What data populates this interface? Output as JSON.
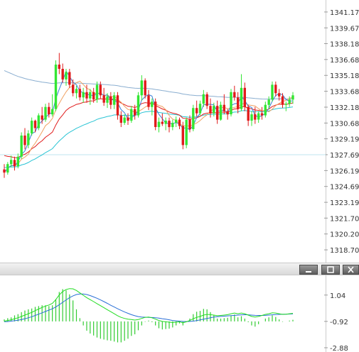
{
  "colors": {
    "up": "#33e633",
    "down": "#e01b1b",
    "ma_red": "#e01b1b",
    "ma_orange": "#f0a060",
    "ma_blue": "#3a7fd8",
    "ma_cyan": "#29c4d4",
    "ma_slate": "#8aaed0",
    "level_line": "#bfe6ef",
    "macd_fast": "#22dd22",
    "macd_signal": "#2a6fd6",
    "histogram": "#33cc33"
  },
  "window_buttons": {
    "minimize": "minimize-icon",
    "maximize": "maximize-icon",
    "close": "close-icon"
  },
  "chart_data": [
    {
      "type": "candlestick",
      "title": "",
      "ylim": [
        1317.9,
        1341.9
      ],
      "y_ticks": [
        "1341.17",
        "1339.67",
        "1338.18",
        "1336.68",
        "1335.18",
        "1333.68",
        "1332.18",
        "1330.68",
        "1329.19",
        "1327.69",
        "1326.19",
        "1324.69",
        "1323.19",
        "1321.70",
        "1320.20",
        "1318.70"
      ],
      "horizontal_level": 1327.69,
      "ohlc": [
        [
          1326.3,
          1326.8,
          1325.5,
          1326.0
        ],
        [
          1326.0,
          1327.0,
          1325.8,
          1326.8
        ],
        [
          1326.8,
          1327.6,
          1326.5,
          1327.2
        ],
        [
          1327.2,
          1327.5,
          1326.2,
          1326.6
        ],
        [
          1326.6,
          1327.8,
          1326.4,
          1327.5
        ],
        [
          1327.5,
          1329.8,
          1327.3,
          1329.5
        ],
        [
          1329.5,
          1330.2,
          1328.2,
          1328.6
        ],
        [
          1328.6,
          1330.0,
          1328.3,
          1329.7
        ],
        [
          1329.7,
          1331.2,
          1329.5,
          1330.9
        ],
        [
          1330.9,
          1331.0,
          1329.8,
          1330.2
        ],
        [
          1330.2,
          1331.6,
          1330.0,
          1331.4
        ],
        [
          1331.4,
          1332.2,
          1330.6,
          1331.0
        ],
        [
          1331.0,
          1332.5,
          1330.8,
          1332.2
        ],
        [
          1332.2,
          1332.6,
          1331.2,
          1331.5
        ],
        [
          1331.5,
          1333.4,
          1331.3,
          1332.0
        ],
        [
          1332.0,
          1336.6,
          1331.8,
          1336.2
        ],
        [
          1336.2,
          1337.3,
          1335.3,
          1335.8
        ],
        [
          1335.8,
          1336.3,
          1334.5,
          1334.8
        ],
        [
          1334.8,
          1335.8,
          1334.2,
          1335.5
        ],
        [
          1335.5,
          1335.8,
          1334.0,
          1334.3
        ],
        [
          1334.3,
          1334.8,
          1333.2,
          1333.5
        ],
        [
          1333.5,
          1334.2,
          1333.0,
          1333.9
        ],
        [
          1333.9,
          1334.3,
          1332.8,
          1333.1
        ],
        [
          1333.1,
          1334.0,
          1332.6,
          1333.6
        ],
        [
          1333.6,
          1334.3,
          1332.6,
          1333.0
        ],
        [
          1333.0,
          1333.9,
          1332.4,
          1333.6
        ],
        [
          1333.6,
          1334.0,
          1332.6,
          1332.9
        ],
        [
          1332.9,
          1334.6,
          1332.6,
          1334.3
        ],
        [
          1334.3,
          1334.6,
          1333.0,
          1333.3
        ],
        [
          1333.3,
          1334.0,
          1332.3,
          1332.6
        ],
        [
          1332.6,
          1333.5,
          1332.1,
          1333.2
        ],
        [
          1333.2,
          1333.6,
          1332.0,
          1332.4
        ],
        [
          1332.4,
          1333.6,
          1332.0,
          1333.3
        ],
        [
          1333.3,
          1333.6,
          1331.0,
          1331.4
        ],
        [
          1331.4,
          1331.8,
          1330.3,
          1330.7
        ],
        [
          1330.7,
          1331.5,
          1330.5,
          1331.2
        ],
        [
          1331.2,
          1331.6,
          1330.5,
          1330.9
        ],
        [
          1330.9,
          1332.3,
          1330.7,
          1332.0
        ],
        [
          1332.0,
          1332.4,
          1331.0,
          1331.4
        ],
        [
          1331.4,
          1333.6,
          1331.2,
          1333.3
        ],
        [
          1333.3,
          1335.2,
          1332.8,
          1334.7
        ],
        [
          1334.7,
          1334.9,
          1333.0,
          1333.3
        ],
        [
          1333.3,
          1333.8,
          1331.9,
          1332.2
        ],
        [
          1332.2,
          1333.0,
          1331.4,
          1332.7
        ],
        [
          1332.7,
          1333.0,
          1330.0,
          1330.3
        ],
        [
          1330.3,
          1331.2,
          1329.8,
          1330.8
        ],
        [
          1330.8,
          1331.6,
          1330.4,
          1330.6
        ],
        [
          1330.6,
          1331.2,
          1330.0,
          1330.9
        ],
        [
          1330.9,
          1331.2,
          1329.8,
          1330.3
        ],
        [
          1330.3,
          1331.0,
          1330.0,
          1330.7
        ],
        [
          1330.7,
          1331.3,
          1330.3,
          1331.0
        ],
        [
          1331.0,
          1331.2,
          1330.1,
          1330.4
        ],
        [
          1330.4,
          1330.8,
          1328.2,
          1328.6
        ],
        [
          1328.6,
          1331.2,
          1328.3,
          1331.0
        ],
        [
          1331.0,
          1331.4,
          1329.8,
          1330.1
        ],
        [
          1330.1,
          1332.4,
          1329.9,
          1332.1
        ],
        [
          1332.1,
          1332.8,
          1331.3,
          1331.6
        ],
        [
          1331.6,
          1332.8,
          1331.4,
          1332.5
        ],
        [
          1332.5,
          1333.8,
          1332.2,
          1333.4
        ],
        [
          1333.4,
          1333.6,
          1332.0,
          1332.3
        ],
        [
          1332.3,
          1333.0,
          1331.2,
          1331.6
        ],
        [
          1331.6,
          1332.6,
          1331.3,
          1332.3
        ],
        [
          1332.3,
          1332.8,
          1330.6,
          1331.0
        ],
        [
          1331.0,
          1332.7,
          1330.9,
          1332.4
        ],
        [
          1332.4,
          1333.4,
          1331.5,
          1331.8
        ],
        [
          1331.8,
          1332.0,
          1331.0,
          1331.5
        ],
        [
          1331.5,
          1333.9,
          1331.3,
          1333.6
        ],
        [
          1333.6,
          1334.2,
          1332.8,
          1333.1
        ],
        [
          1333.1,
          1333.6,
          1331.6,
          1332.0
        ],
        [
          1332.0,
          1335.3,
          1331.8,
          1334.0
        ],
        [
          1334.0,
          1334.5,
          1331.8,
          1332.2
        ],
        [
          1332.2,
          1332.4,
          1330.4,
          1330.9
        ],
        [
          1330.9,
          1331.8,
          1330.4,
          1331.5
        ],
        [
          1331.5,
          1332.2,
          1330.6,
          1331.0
        ],
        [
          1331.0,
          1331.8,
          1330.7,
          1331.6
        ],
        [
          1331.6,
          1332.2,
          1331.0,
          1331.4
        ],
        [
          1331.4,
          1332.7,
          1331.2,
          1332.4
        ],
        [
          1332.4,
          1333.2,
          1332.0,
          1332.9
        ],
        [
          1332.9,
          1334.6,
          1332.7,
          1334.3
        ],
        [
          1334.3,
          1334.6,
          1333.2,
          1333.5
        ],
        [
          1333.5,
          1333.9,
          1332.8,
          1333.2
        ],
        [
          1333.2,
          1333.5,
          1332.1,
          1332.4
        ],
        [
          1332.4,
          1332.7,
          1331.8,
          1332.5
        ],
        [
          1332.5,
          1333.2,
          1332.2,
          1332.9
        ],
        [
          1332.9,
          1333.6,
          1332.5,
          1333.3
        ]
      ]
    },
    {
      "type": "macd",
      "ylim": [
        -2.88,
        2.4
      ],
      "y_ticks": [
        "1.04",
        "-0.92",
        "-2.88"
      ],
      "fast": [
        -0.9,
        -0.85,
        -0.8,
        -0.72,
        -0.65,
        -0.55,
        -0.45,
        -0.35,
        -0.25,
        -0.12,
        0.0,
        0.12,
        0.22,
        0.3,
        0.42,
        0.7,
        1.05,
        1.3,
        1.45,
        1.52,
        1.5,
        1.38,
        1.2,
        1.02,
        0.85,
        0.7,
        0.55,
        0.4,
        0.25,
        0.1,
        -0.05,
        -0.2,
        -0.35,
        -0.5,
        -0.62,
        -0.7,
        -0.75,
        -0.78,
        -0.82,
        -0.78,
        -0.7,
        -0.62,
        -0.6,
        -0.65,
        -0.75,
        -0.85,
        -0.92,
        -0.95,
        -0.98,
        -1.0,
        -0.98,
        -0.95,
        -1.02,
        -0.95,
        -0.85,
        -0.72,
        -0.62,
        -0.55,
        -0.45,
        -0.4,
        -0.42,
        -0.45,
        -0.5,
        -0.48,
        -0.45,
        -0.42,
        -0.35,
        -0.3,
        -0.35,
        -0.3,
        -0.35,
        -0.45,
        -0.55,
        -0.6,
        -0.55,
        -0.48,
        -0.4,
        -0.35,
        -0.28,
        -0.3,
        -0.35,
        -0.4,
        -0.38,
        -0.35,
        -0.32
      ],
      "signal": [
        -0.95,
        -0.93,
        -0.9,
        -0.87,
        -0.83,
        -0.78,
        -0.72,
        -0.65,
        -0.57,
        -0.48,
        -0.38,
        -0.28,
        -0.18,
        -0.08,
        0.02,
        0.15,
        0.32,
        0.5,
        0.68,
        0.85,
        0.98,
        1.08,
        1.12,
        1.12,
        1.08,
        1.0,
        0.9,
        0.8,
        0.68,
        0.55,
        0.42,
        0.28,
        0.15,
        0.02,
        -0.1,
        -0.22,
        -0.32,
        -0.42,
        -0.5,
        -0.56,
        -0.6,
        -0.61,
        -0.62,
        -0.63,
        -0.65,
        -0.68,
        -0.72,
        -0.76,
        -0.8,
        -0.85,
        -0.88,
        -0.9,
        -0.92,
        -0.93,
        -0.92,
        -0.9,
        -0.86,
        -0.81,
        -0.76,
        -0.7,
        -0.65,
        -0.6,
        -0.57,
        -0.55,
        -0.53,
        -0.51,
        -0.49,
        -0.47,
        -0.45,
        -0.43,
        -0.42,
        -0.43,
        -0.45,
        -0.47,
        -0.48,
        -0.48,
        -0.47,
        -0.45,
        -0.43,
        -0.41,
        -0.4,
        -0.39,
        -0.38,
        -0.37,
        -0.36
      ]
    }
  ]
}
